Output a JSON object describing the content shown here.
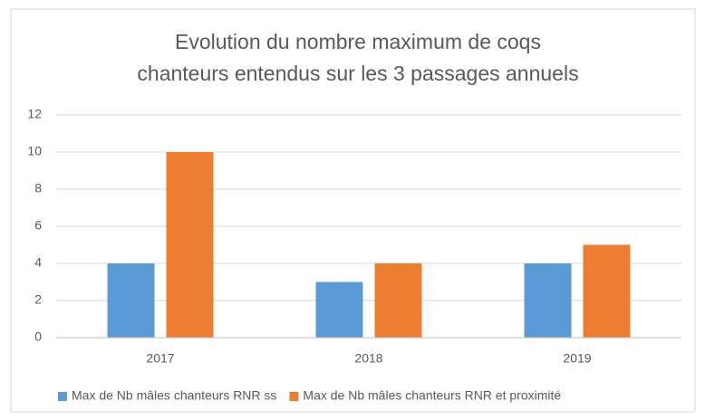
{
  "chart_data": {
    "type": "bar",
    "title": [
      "Evolution du nombre maximum de coqs",
      "chanteurs entendus sur les 3 passages annuels"
    ],
    "categories": [
      "2017",
      "2018",
      "2019"
    ],
    "series": [
      {
        "name": "Max de Nb mâles chanteurs RNR ss",
        "color": "#5b9bd5",
        "values": [
          4,
          3,
          4
        ]
      },
      {
        "name": "Max de Nb mâles chanteurs RNR et proximité",
        "color": "#ed7d31",
        "values": [
          10,
          4,
          5
        ]
      }
    ],
    "ylim": [
      0,
      12
    ],
    "yticks": [
      0,
      2,
      4,
      6,
      8,
      10,
      12
    ],
    "grid": true,
    "legend": "bottom"
  }
}
